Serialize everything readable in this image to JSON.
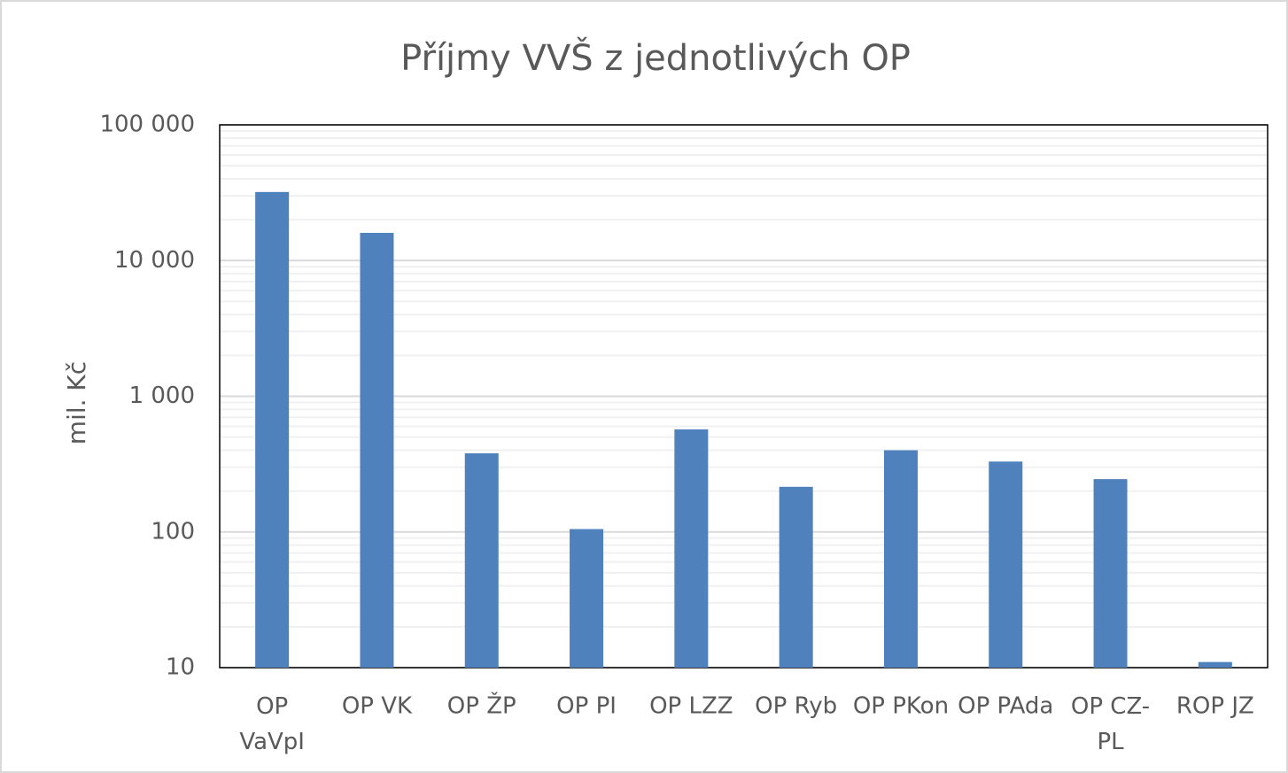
{
  "chart_data": {
    "type": "bar",
    "title": "Příjmy VVŠ z jednotlivých OP",
    "y_label": "mil. Kč",
    "categories": [
      "OP VaVpI",
      "OP VK",
      "OP ŽP",
      "OP PI",
      "OP LZZ",
      "OP Ryb",
      "OP PKon",
      "OP PAda",
      "OP CZ-PL",
      "ROP JZ"
    ],
    "values": [
      32000,
      16000,
      380,
      105,
      570,
      215,
      400,
      330,
      245,
      11
    ],
    "color": "#4f81bd",
    "log_scale": true,
    "grid": true,
    "ylim": [
      10,
      100000
    ],
    "yticks": [
      10,
      100,
      {
        "value": 1000,
        "label": "1 000"
      },
      {
        "value": 10000,
        "label": "10 000"
      },
      {
        "value": 100000,
        "label": "100 000"
      }
    ]
  }
}
